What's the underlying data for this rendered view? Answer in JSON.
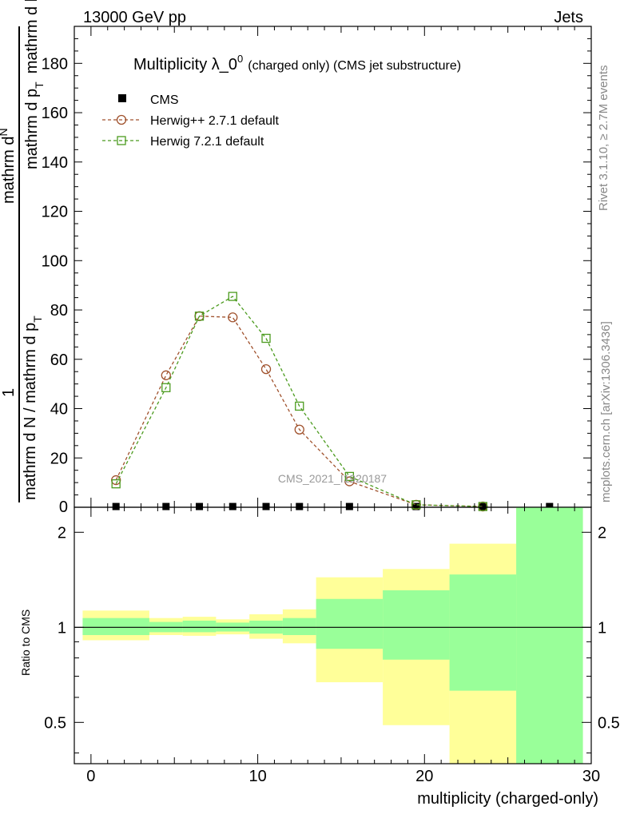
{
  "header": {
    "energy_label": "13000 GeV pp",
    "process_label": "Jets"
  },
  "side_labels": {
    "rivet": "Rivet 3.1.10, ≥ 2.7M events",
    "mcplots": "mcplots.cern.ch [arXiv:1306.3436]"
  },
  "watermark": "CMS_2021_I1920187",
  "chart_data": [
    {
      "type": "line",
      "title": {
        "main": "Multiplicity λ_0",
        "sup": "0",
        "rest": "(charged only) (CMS jet substructure)"
      },
      "ylabel": {
        "numerator_1": "1",
        "numerator_2": "mathrm dN",
        "denominator_1": "mathrm d N / mathrm d p",
        "denominator_sub": "T",
        "denominator_2": "mathrm d p",
        "denominator_2b": "mathrm d lambda",
        "frac_outer_num": "mathrm d",
        "frac_outer_n": "N"
      },
      "xlim": [
        -1,
        30
      ],
      "ylim": [
        0,
        195
      ],
      "yticks": [
        20,
        40,
        60,
        80,
        100,
        120,
        140,
        160,
        180
      ],
      "legend_position": "top-left",
      "series": [
        {
          "name": "CMS",
          "marker": "filled-square",
          "color": "#000000",
          "x": [
            1.5,
            4.5,
            6.5,
            8.5,
            10.5,
            12.5,
            15.5,
            19.5,
            23.5,
            27.5
          ],
          "y": [
            0.3,
            0.3,
            0.3,
            0.3,
            0.3,
            0.3,
            0.3,
            0.3,
            0.3,
            0.3
          ]
        },
        {
          "name": "Herwig++ 2.7.1 default",
          "marker": "open-circle",
          "color": "#a0522d",
          "x": [
            1.5,
            4.5,
            6.5,
            8.5,
            10.5,
            12.5,
            15.5,
            19.5,
            23.5
          ],
          "y": [
            11,
            53.5,
            77.5,
            77,
            56,
            31.5,
            10.5,
            1,
            0.3
          ]
        },
        {
          "name": "Herwig 7.2.1 default",
          "marker": "open-square",
          "color": "#4b9b1e",
          "x": [
            1.5,
            4.5,
            6.5,
            8.5,
            10.5,
            12.5,
            15.5,
            19.5,
            23.5
          ],
          "y": [
            9.5,
            48.5,
            77.5,
            85.5,
            68.5,
            41,
            12.5,
            1,
            0.3
          ]
        }
      ]
    },
    {
      "type": "area",
      "ylabel": "Ratio to CMS",
      "xlabel": "multiplicity (charged-only)",
      "xlim": [
        -1,
        30
      ],
      "ylim": [
        0.37,
        2.4
      ],
      "log_y": true,
      "yticks": [
        0.5,
        1,
        2
      ],
      "xticks": [
        0,
        10,
        20,
        30
      ],
      "bins": [
        {
          "lo": -0.5,
          "hi": 3.5,
          "stat_lo": 0.945,
          "stat_hi": 1.07,
          "tot_lo": 0.91,
          "tot_hi": 1.13
        },
        {
          "lo": 3.5,
          "hi": 5.5,
          "stat_lo": 0.965,
          "stat_hi": 1.04,
          "tot_lo": 0.945,
          "tot_hi": 1.07
        },
        {
          "lo": 5.5,
          "hi": 7.5,
          "stat_lo": 0.965,
          "stat_hi": 1.05,
          "tot_lo": 0.94,
          "tot_hi": 1.08
        },
        {
          "lo": 7.5,
          "hi": 9.5,
          "stat_lo": 0.97,
          "stat_hi": 1.035,
          "tot_lo": 0.95,
          "tot_hi": 1.06
        },
        {
          "lo": 9.5,
          "hi": 11.5,
          "stat_lo": 0.955,
          "stat_hi": 1.05,
          "tot_lo": 0.92,
          "tot_hi": 1.1
        },
        {
          "lo": 11.5,
          "hi": 13.5,
          "stat_lo": 0.945,
          "stat_hi": 1.07,
          "tot_lo": 0.89,
          "tot_hi": 1.14
        },
        {
          "lo": 13.5,
          "hi": 17.5,
          "stat_lo": 0.855,
          "stat_hi": 1.23,
          "tot_lo": 0.67,
          "tot_hi": 1.44
        },
        {
          "lo": 17.5,
          "hi": 21.5,
          "stat_lo": 0.79,
          "stat_hi": 1.31,
          "tot_lo": 0.49,
          "tot_hi": 1.53
        },
        {
          "lo": 21.5,
          "hi": 25.5,
          "stat_lo": 0.63,
          "stat_hi": 1.47,
          "tot_lo": 0.37,
          "tot_hi": 1.84
        },
        {
          "lo": 25.5,
          "hi": 29.5,
          "stat_lo": 0.37,
          "stat_hi": 2.4,
          "tot_lo": 0.37,
          "tot_hi": 2.4
        }
      ],
      "reference_line": 1
    }
  ],
  "colors": {
    "stat_band": "#99ff99",
    "total_band": "#ffff99",
    "axis": "#000000"
  }
}
